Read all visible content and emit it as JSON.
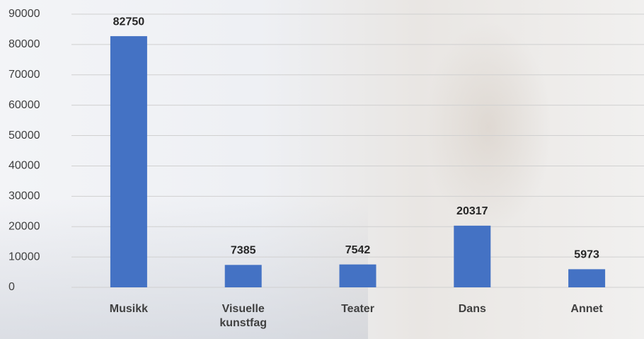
{
  "chart_data": {
    "type": "bar",
    "categories": [
      "Musikk",
      "Visuelle kunstfag",
      "Teater",
      "Dans",
      "Annet"
    ],
    "values": [
      82750,
      7385,
      7542,
      20317,
      5973
    ],
    "color": "#4472c4",
    "ylim": [
      0,
      90000
    ],
    "yticks": [
      0,
      10000,
      20000,
      30000,
      40000,
      50000,
      60000,
      70000,
      80000,
      90000
    ],
    "grid": true
  }
}
